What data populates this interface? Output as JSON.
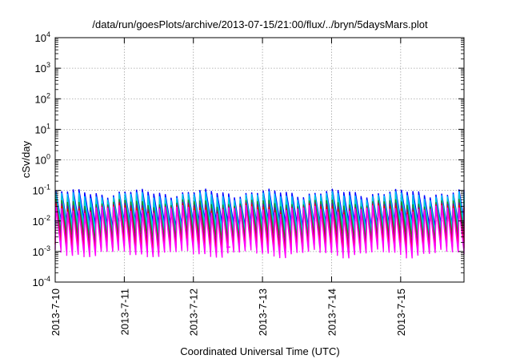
{
  "chart_data": {
    "type": "line",
    "title": "/data/run/goesPlots/archive/2013-07-15/21:00/flux/../bryn/5daysMars.plot",
    "xlabel": "Coordinated Universal Time (UTC)",
    "ylabel": "cSv/day",
    "x_start": "2013-07-10",
    "x_end": "2013-07-15T22:00",
    "x_ticks": [
      "2013-7-10",
      "2013-7-11",
      "2013-7-12",
      "2013-7-13",
      "2013-7-14",
      "2013-7-15"
    ],
    "y_scale": "log",
    "ylim": [
      0.0001,
      10000
    ],
    "y_ticks": [
      {
        "base": "10",
        "exp": "-4"
      },
      {
        "base": "10",
        "exp": "-3"
      },
      {
        "base": "10",
        "exp": "-2"
      },
      {
        "base": "10",
        "exp": "-1"
      },
      {
        "base": "10",
        "exp": "0"
      },
      {
        "base": "10",
        "exp": "1"
      },
      {
        "base": "10",
        "exp": "2"
      },
      {
        "base": "10",
        "exp": "3"
      },
      {
        "base": "10",
        "exp": "4"
      }
    ],
    "grid": true,
    "pulse_period_hours": 2,
    "series": [
      {
        "color": "#0000ff",
        "peak": 0.085,
        "trough": 0.0085
      },
      {
        "color": "#00bfff",
        "peak": 0.07,
        "trough": 0.006
      },
      {
        "color": "#00ced1",
        "peak": 0.055,
        "trough": 0.0045
      },
      {
        "color": "#228b22",
        "peak": 0.04,
        "trough": 0.003
      },
      {
        "color": "#8b008b",
        "peak": 0.032,
        "trough": 0.0018
      },
      {
        "color": "#ff0000",
        "peak": 0.028,
        "trough": 0.0013
      },
      {
        "color": "#ff00ff",
        "peak": 0.025,
        "trough": 0.0009
      }
    ],
    "dip": {
      "at": "2013-07-12T12:00",
      "value": 0.0014
    }
  }
}
